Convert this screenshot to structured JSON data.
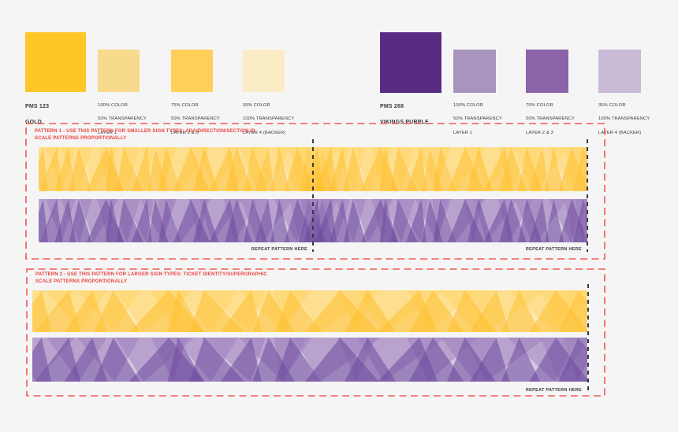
{
  "background": "#F6F5F6",
  "palette": {
    "gold": {
      "main": {
        "code": "PMS 123",
        "name": "GOLD",
        "color": "#FFC627"
      },
      "swatches": [
        {
          "lines": [
            "100% COLOR",
            "50% TRANSPARENCY",
            "LAYER 1"
          ],
          "color": "#F8DA8C"
        },
        {
          "lines": [
            "75% COLOR",
            "50% TRANSPARENCY",
            "LAYER 2 & 3"
          ],
          "color": "#FFD058"
        },
        {
          "lines": [
            "35% COLOR",
            "100% TRANSPARENCY",
            "LAYER 4 (BACKER)"
          ],
          "color": "#FAEDC5"
        }
      ]
    },
    "purple": {
      "main": {
        "code": "PMS 268",
        "name": "VIKINGS PURPLE",
        "color": "#582C83"
      },
      "swatches": [
        {
          "lines": [
            "100% COLOR",
            "50% TRANSPARENCY",
            "LAYER 1"
          ],
          "color": "#A894BF"
        },
        {
          "lines": [
            "75% COLOR",
            "50% TRANSPARENCY",
            "LAYER 2 & 3"
          ],
          "color": "#8A63A9"
        },
        {
          "lines": [
            "35% COLOR",
            "100% TRANSPARENCY",
            "LAYER 4 (BACKER)"
          ],
          "color": "#C9BBD8"
        }
      ]
    }
  },
  "patterns": [
    {
      "title": "PATTERN 1 - USE THIS PATTERN FOR SMALLER SIGN TYPES: ADA/DIRECTION/SECTION ID",
      "subtitle": "SCALE PATTERNS PROPORTIONALLY",
      "repeat_labels": [
        "REPEAT PATTERN HERE",
        "REPEAT PATTERN HERE"
      ]
    },
    {
      "title": "PATTERN 2 - USE THIS PATTERN FOR LARGER SIGN TYPES: TICKET IDENTITY/SUPERGRAPHIC",
      "subtitle": "SCALE PATTERNS PROPORTIONALLY",
      "repeat_labels": [
        "REPEAT PATTERN HERE"
      ]
    }
  ],
  "pattern_colors": {
    "gold": {
      "backer": "#FBE9B8",
      "light": "#FFD666",
      "dark": "#FFBF30"
    },
    "purple": {
      "backer": "#D5C9E1",
      "light": "#9C7DBC",
      "dark": "#6E4B9E"
    }
  },
  "accents": {
    "box_dash": "#F05A50",
    "note_text": "#E8423B",
    "label_text": "#3B3B3B",
    "repeat_tick": "#3A3A3A"
  }
}
